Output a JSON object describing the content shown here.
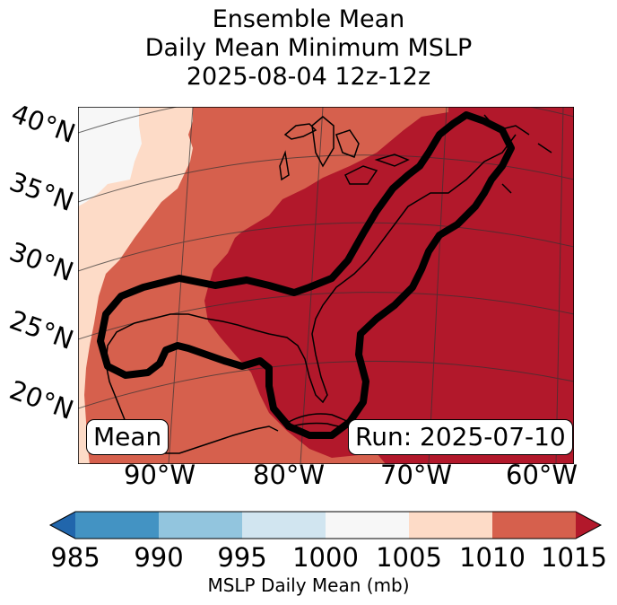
{
  "title": {
    "line1": "Ensemble Mean",
    "line2": "Daily Mean Minimum MSLP",
    "line3": "2025-08-04 12z-12z"
  },
  "map": {
    "lat_labels": [
      "40°N",
      "35°N",
      "30°N",
      "25°N",
      "20°N"
    ],
    "lon_labels": [
      "90°W",
      "80°W",
      "70°W",
      "60°W"
    ],
    "mean_box": "Mean",
    "run_box": "Run: 2025-07-10",
    "fill_colors": {
      "1000-1005": "#f7f7f7",
      "1005-1010": "#fddbc7",
      "1010-1015": "#d6604d",
      "over-1015": "#b2182b"
    },
    "contour_color": "#000000"
  },
  "colorbar": {
    "label": "MSLP Daily Mean (mb)",
    "ticks": [
      "985",
      "990",
      "995",
      "1000",
      "1005",
      "1010",
      "1015"
    ],
    "bins": [
      {
        "range": "985-990",
        "color": "#4393c3"
      },
      {
        "range": "990-995",
        "color": "#92c5de"
      },
      {
        "range": "995-1000",
        "color": "#d1e5f0"
      },
      {
        "range": "1000-1005",
        "color": "#f7f7f7"
      },
      {
        "range": "1005-1010",
        "color": "#fddbc7"
      },
      {
        "range": "1010-1015",
        "color": "#d6604d"
      }
    ],
    "under_color": "#2166ac",
    "over_color": "#b2182b"
  }
}
